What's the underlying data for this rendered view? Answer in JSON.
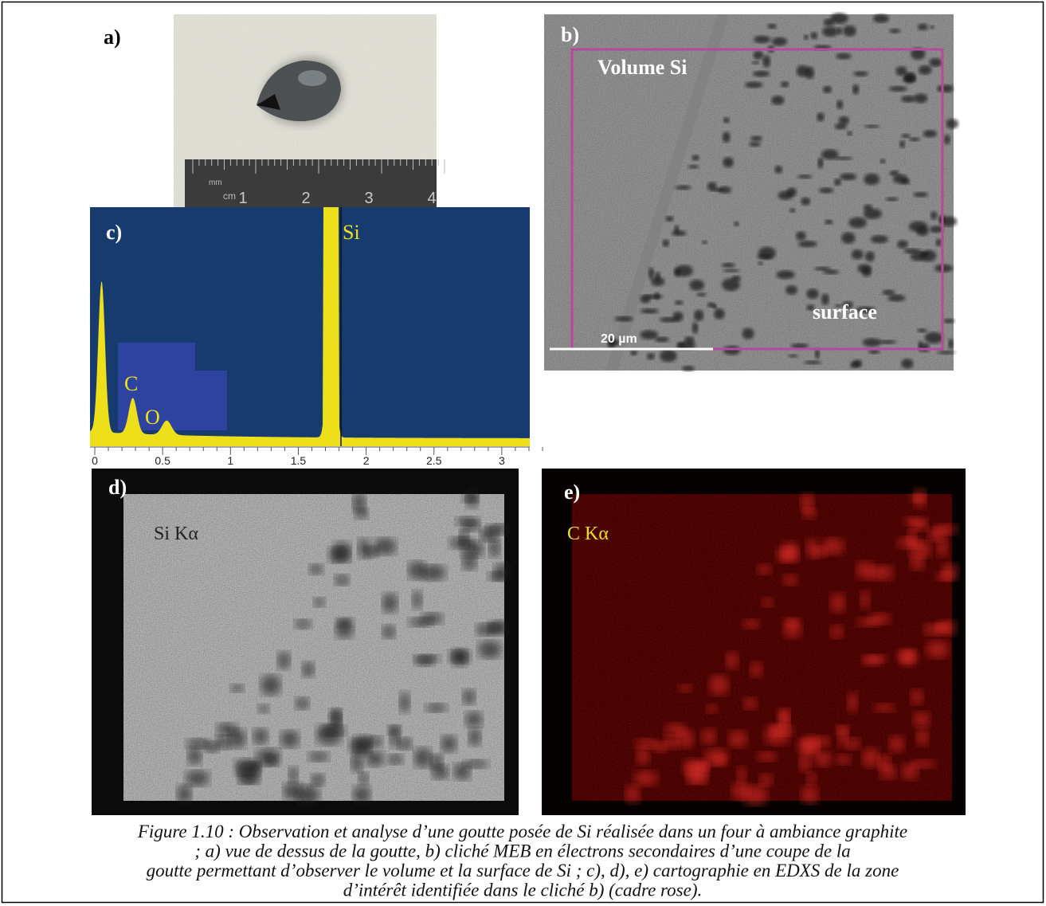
{
  "panels": {
    "a": {
      "label": "a)",
      "ruler": {
        "unit_mm": "mm",
        "unit_cm": "cm",
        "marks": [
          "1",
          "2",
          "3",
          "4"
        ]
      }
    },
    "b": {
      "label": "b)",
      "region_label": "Volume Si",
      "surface_label": "surface",
      "scale_bar": "20 µm"
    },
    "c": {
      "label": "c)",
      "peaks": [
        "Si",
        "C",
        "O"
      ],
      "axis_ticks": [
        "0",
        "0.5",
        "1",
        "1.5",
        "2",
        "2.5",
        "3"
      ]
    },
    "d": {
      "label": "d)",
      "map_label": "Si Kα"
    },
    "e": {
      "label": "e)",
      "map_label": "C Kα"
    }
  },
  "caption": [
    "Figure 1.10 : Observation et analyse d’une goutte posée de Si réalisée dans un four à ambiance graphite",
    "; a) vue de dessus de la goutte, b) cliché MEB en électrons secondaires d’une coupe de la",
    "goutte permettant d’observer le volume et la surface de Si ; c), d), e) cartographie en EDXS de la zone",
    "d’intérêt identifiée dans le cliché b) (cadre rose)."
  ]
}
